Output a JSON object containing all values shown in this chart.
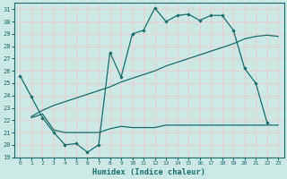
{
  "xlabel": "Humidex (Indice chaleur)",
  "xlim": [
    -0.5,
    23.5
  ],
  "ylim": [
    19,
    31.5
  ],
  "yticks": [
    19,
    20,
    21,
    22,
    23,
    24,
    25,
    26,
    27,
    28,
    29,
    30,
    31
  ],
  "xticks": [
    0,
    1,
    2,
    3,
    4,
    5,
    6,
    7,
    8,
    9,
    10,
    11,
    12,
    13,
    14,
    15,
    16,
    17,
    18,
    19,
    20,
    21,
    22,
    23
  ],
  "bg_color": "#cce8e4",
  "grid_color": "#e8d0d0",
  "line_color": "#1a6b6b",
  "line1_x": [
    0,
    1,
    2,
    3,
    4,
    5,
    6,
    7,
    8,
    9,
    10,
    11,
    12,
    13,
    14,
    15,
    16,
    17,
    18,
    19,
    20,
    21,
    22
  ],
  "line1_y": [
    25.6,
    23.9,
    22.2,
    21.0,
    20.0,
    20.1,
    19.4,
    20.0,
    27.5,
    25.5,
    29.0,
    29.3,
    31.1,
    30.0,
    30.5,
    30.6,
    30.1,
    30.5,
    30.5,
    29.3,
    26.2,
    25.0,
    21.8
  ],
  "line2_x": [
    1,
    2,
    3,
    4,
    5,
    6,
    7,
    8,
    9,
    10,
    11,
    12,
    13,
    14,
    15,
    16,
    17,
    18,
    19,
    20,
    21,
    22,
    23
  ],
  "line2_y": [
    22.3,
    22.8,
    23.2,
    23.5,
    23.8,
    24.1,
    24.4,
    24.7,
    25.1,
    25.4,
    25.7,
    26.0,
    26.4,
    26.7,
    27.0,
    27.3,
    27.6,
    27.9,
    28.2,
    28.6,
    28.8,
    28.9,
    28.8
  ],
  "line3_x": [
    1,
    2,
    3,
    4,
    5,
    6,
    7,
    8,
    9,
    10,
    11,
    12,
    13,
    14,
    15,
    16,
    17,
    18,
    19,
    20,
    21,
    22,
    23
  ],
  "line3_y": [
    22.2,
    22.5,
    21.2,
    21.0,
    21.0,
    21.0,
    21.0,
    21.3,
    21.5,
    21.4,
    21.4,
    21.4,
    21.6,
    21.6,
    21.6,
    21.6,
    21.6,
    21.6,
    21.6,
    21.6,
    21.6,
    21.6,
    21.6
  ]
}
